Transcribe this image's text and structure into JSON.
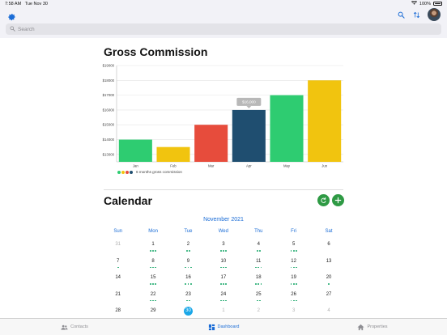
{
  "status": {
    "time": "7:58 AM",
    "date": "Tue Nov 30",
    "battery": "100%"
  },
  "search": {
    "placeholder": "Search"
  },
  "commission": {
    "title": "Gross Commission",
    "legend": "6 months gross commission",
    "tooltip": "$16,000"
  },
  "chart_data": {
    "type": "bar",
    "categories": [
      "Jan",
      "Feb",
      "Mar",
      "Apr",
      "May",
      "Jun"
    ],
    "values": [
      14000,
      13500,
      15000,
      16000,
      17000,
      18000
    ],
    "colors": [
      "#2ecc71",
      "#f1c40f",
      "#e74c3c",
      "#1f4e70",
      "#2ecc71",
      "#f1c40f"
    ],
    "legend_colors": [
      "#2ecc71",
      "#f1c40f",
      "#e74c3c",
      "#1f4e70"
    ],
    "yticks": [
      "$13000",
      "$14000",
      "$15000",
      "$16000",
      "$17000",
      "$18000",
      "$19000"
    ],
    "ylim": [
      12500,
      19000
    ],
    "title": "Gross Commission",
    "xlabel": "",
    "ylabel": ""
  },
  "calendar": {
    "title": "Calendar",
    "month": "November 2021",
    "weekdays": [
      "Sun",
      "Mon",
      "Tue",
      "Wed",
      "Thu",
      "Fri",
      "Sat"
    ],
    "weeks": [
      [
        {
          "d": "31",
          "m": true,
          "dots": 0
        },
        {
          "d": "1",
          "dots": 3
        },
        {
          "d": "2",
          "dots": 2
        },
        {
          "d": "3",
          "dots": 3
        },
        {
          "d": "4",
          "dots": 2
        },
        {
          "d": "5",
          "dots": 3
        },
        {
          "d": "6",
          "dots": 0
        }
      ],
      [
        {
          "d": "7",
          "dots": 1
        },
        {
          "d": "8",
          "dots": 3
        },
        {
          "d": "9",
          "dots": 3
        },
        {
          "d": "10",
          "dots": 3
        },
        {
          "d": "11",
          "dots": 3
        },
        {
          "d": "12",
          "dots": 3
        },
        {
          "d": "13",
          "dots": 0
        }
      ],
      [
        {
          "d": "14",
          "dots": 0
        },
        {
          "d": "15",
          "dots": 3
        },
        {
          "d": "16",
          "dots": 3
        },
        {
          "d": "17",
          "dots": 3
        },
        {
          "d": "18",
          "dots": 3
        },
        {
          "d": "19",
          "dots": 3
        },
        {
          "d": "20",
          "dots": 1
        }
      ],
      [
        {
          "d": "21",
          "dots": 0
        },
        {
          "d": "22",
          "dots": 3
        },
        {
          "d": "23",
          "dots": 2
        },
        {
          "d": "24",
          "dots": 3
        },
        {
          "d": "25",
          "dots": 2
        },
        {
          "d": "26",
          "dots": 3
        },
        {
          "d": "27",
          "dots": 0
        }
      ],
      [
        {
          "d": "28",
          "dots": 0
        },
        {
          "d": "29",
          "dots": 0
        },
        {
          "d": "30",
          "today": true,
          "dots": 0
        },
        {
          "d": "1",
          "m": true,
          "dots": 0
        },
        {
          "d": "2",
          "m": true,
          "dots": 0
        },
        {
          "d": "3",
          "m": true,
          "dots": 0
        },
        {
          "d": "4",
          "m": true,
          "dots": 0
        }
      ]
    ]
  },
  "tabs": [
    {
      "label": "Contacts",
      "icon": "contacts-icon",
      "active": false
    },
    {
      "label": "Dashboard",
      "icon": "dashboard-icon",
      "active": true
    },
    {
      "label": "Properties",
      "icon": "home-icon",
      "active": false
    }
  ]
}
